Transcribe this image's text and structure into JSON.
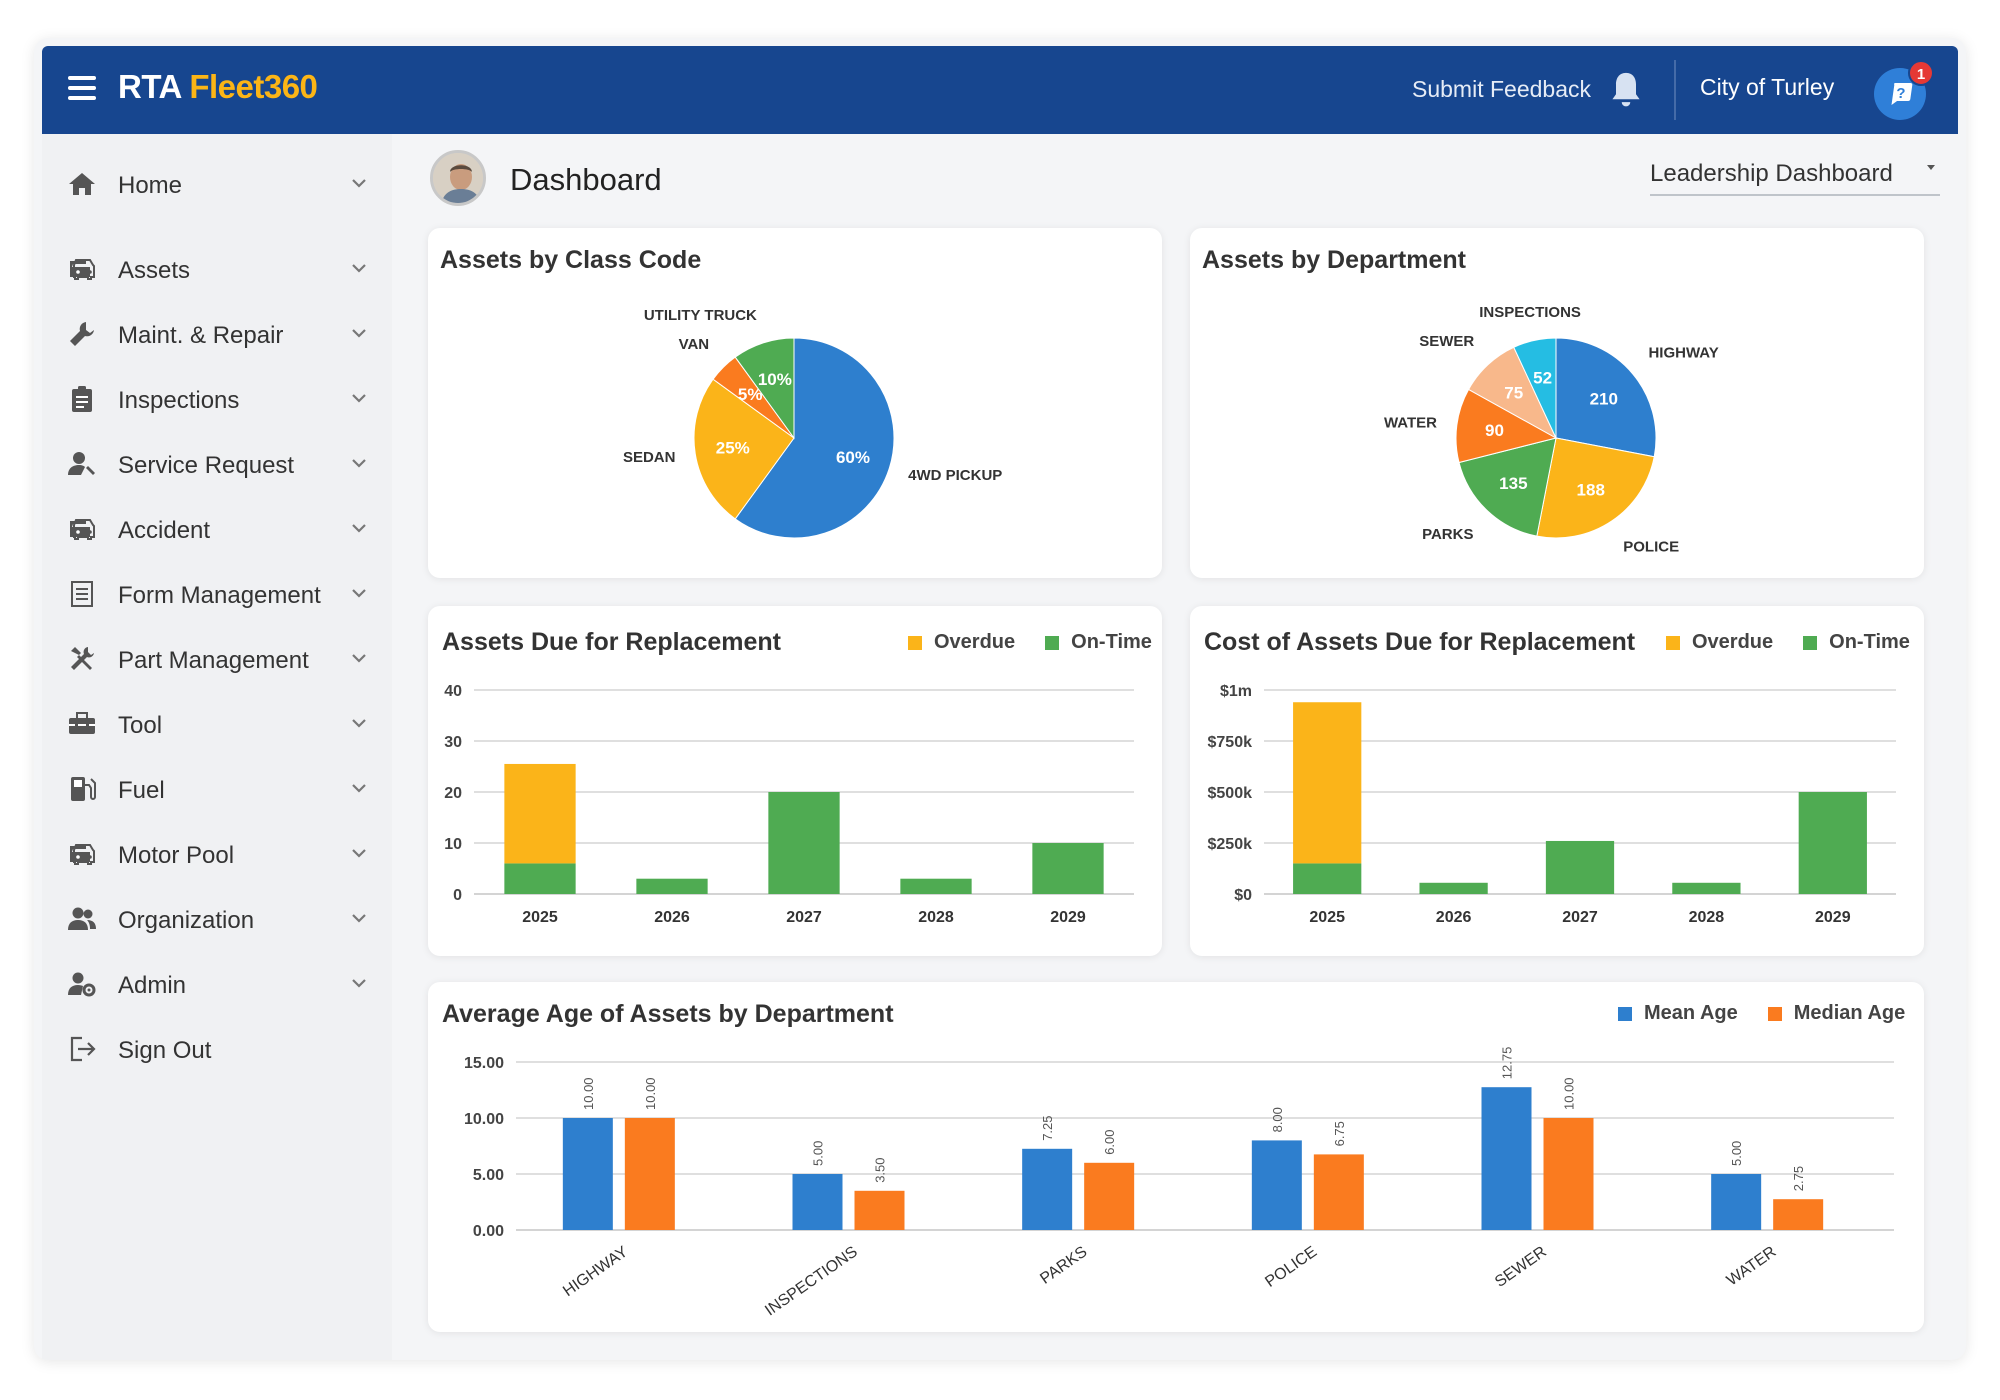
{
  "header": {
    "logo_rta": "RTA",
    "logo_fleet": "Fleet360",
    "feedback_label": "Submit Feedback",
    "org_name": "City of Turley",
    "help_badge": "1"
  },
  "sidebar": {
    "items": [
      {
        "label": "Home",
        "icon": "home-icon"
      },
      {
        "label": "Assets",
        "icon": "car-icon"
      },
      {
        "label": "Maint. & Repair",
        "icon": "wrench-icon"
      },
      {
        "label": "Inspections",
        "icon": "clipboard-icon"
      },
      {
        "label": "Service Request",
        "icon": "person-wrench-icon"
      },
      {
        "label": "Accident",
        "icon": "car-crash-icon"
      },
      {
        "label": "Form Management",
        "icon": "form-icon"
      },
      {
        "label": "Part Management",
        "icon": "tools-icon"
      },
      {
        "label": "Tool",
        "icon": "toolbox-icon"
      },
      {
        "label": "Fuel",
        "icon": "fuel-icon"
      },
      {
        "label": "Motor Pool",
        "icon": "car-icon"
      },
      {
        "label": "Organization",
        "icon": "people-icon"
      },
      {
        "label": "Admin",
        "icon": "user-gear-icon"
      },
      {
        "label": "Sign Out",
        "icon": "sign-out-icon"
      }
    ]
  },
  "page": {
    "title": "Dashboard",
    "dashboard_select": "Leadership Dashboard"
  },
  "colors": {
    "header_bg": "#17468f",
    "brand_accent": "#fcb516",
    "blue": "#2e7fce",
    "orange": "#fa7b1f",
    "yellow": "#fbb419",
    "green": "#4fab52",
    "peach": "#f8b88b",
    "cyan": "#25bde3"
  },
  "chart_data": [
    {
      "type": "pie",
      "title": "Assets by Class Code",
      "slices": [
        {
          "label": "4WD PICKUP",
          "value": 60,
          "display": "60%",
          "color": "#2e7fce"
        },
        {
          "label": "SEDAN",
          "value": 25,
          "display": "25%",
          "color": "#fbb419"
        },
        {
          "label": "VAN",
          "value": 5,
          "display": "5%",
          "color": "#fa7b1f"
        },
        {
          "label": "UTILITY TRUCK",
          "value": 10,
          "display": "10%",
          "color": "#4fab52"
        }
      ]
    },
    {
      "type": "pie",
      "title": "Assets by Department",
      "slices": [
        {
          "label": "HIGHWAY",
          "value": 210,
          "display": "210",
          "color": "#2e7fce"
        },
        {
          "label": "POLICE",
          "value": 188,
          "display": "188",
          "color": "#fbb419"
        },
        {
          "label": "PARKS",
          "value": 135,
          "display": "135",
          "color": "#4fab52"
        },
        {
          "label": "WATER",
          "value": 90,
          "display": "90",
          "color": "#fa7b1f"
        },
        {
          "label": "SEWER",
          "value": 75,
          "display": "75",
          "color": "#f8b88b"
        },
        {
          "label": "INSPECTIONS",
          "value": 52,
          "display": "52",
          "color": "#25bde3"
        }
      ]
    },
    {
      "type": "bar",
      "stacked": true,
      "title": "Assets Due for Replacement",
      "categories": [
        "2025",
        "2026",
        "2027",
        "2028",
        "2029"
      ],
      "series": [
        {
          "name": "On-Time",
          "color": "#4fab52",
          "values": [
            6,
            3,
            20,
            3,
            10
          ]
        },
        {
          "name": "Overdue",
          "color": "#fbb419",
          "values": [
            19.5,
            0,
            0,
            0,
            0
          ]
        }
      ],
      "legend": [
        "Overdue",
        "On-Time"
      ],
      "ylim": [
        0,
        40
      ],
      "yticks": [
        "0",
        "10",
        "20",
        "30",
        "40"
      ],
      "grid": true
    },
    {
      "type": "bar",
      "stacked": true,
      "title": "Cost of Assets Due for Replacement",
      "categories": [
        "2025",
        "2026",
        "2027",
        "2028",
        "2029"
      ],
      "series": [
        {
          "name": "On-Time",
          "color": "#4fab52",
          "values": [
            150000,
            55000,
            260000,
            55000,
            500000
          ]
        },
        {
          "name": "Overdue",
          "color": "#fbb419",
          "values": [
            790000,
            0,
            0,
            0,
            0
          ]
        }
      ],
      "legend": [
        "Overdue",
        "On-Time"
      ],
      "ylim": [
        0,
        1000000
      ],
      "yticks": [
        "$0",
        "$250k",
        "$500k",
        "$750k",
        "$1m"
      ],
      "grid": true
    },
    {
      "type": "bar",
      "title": "Average Age of Assets by Department",
      "categories": [
        "HIGHWAY",
        "INSPECTIONS",
        "PARKS",
        "POLICE",
        "SEWER",
        "WATER"
      ],
      "series": [
        {
          "name": "Mean Age",
          "color": "#2e7fce",
          "values": [
            10.0,
            5.0,
            7.25,
            8.0,
            12.75,
            5.0
          ],
          "labels": [
            "10.00",
            "5.00",
            "7.25",
            "8.00",
            "12.75",
            "5.00"
          ]
        },
        {
          "name": "Median Age",
          "color": "#fa7b1f",
          "values": [
            10.0,
            3.5,
            6.0,
            6.75,
            10.0,
            2.75
          ],
          "labels": [
            "10.00",
            "3.50",
            "6.00",
            "6.75",
            "10.00",
            "2.75"
          ]
        }
      ],
      "ylim": [
        0,
        15
      ],
      "yticks": [
        "0.00",
        "5.00",
        "10.00",
        "15.00"
      ],
      "grid": true
    }
  ]
}
